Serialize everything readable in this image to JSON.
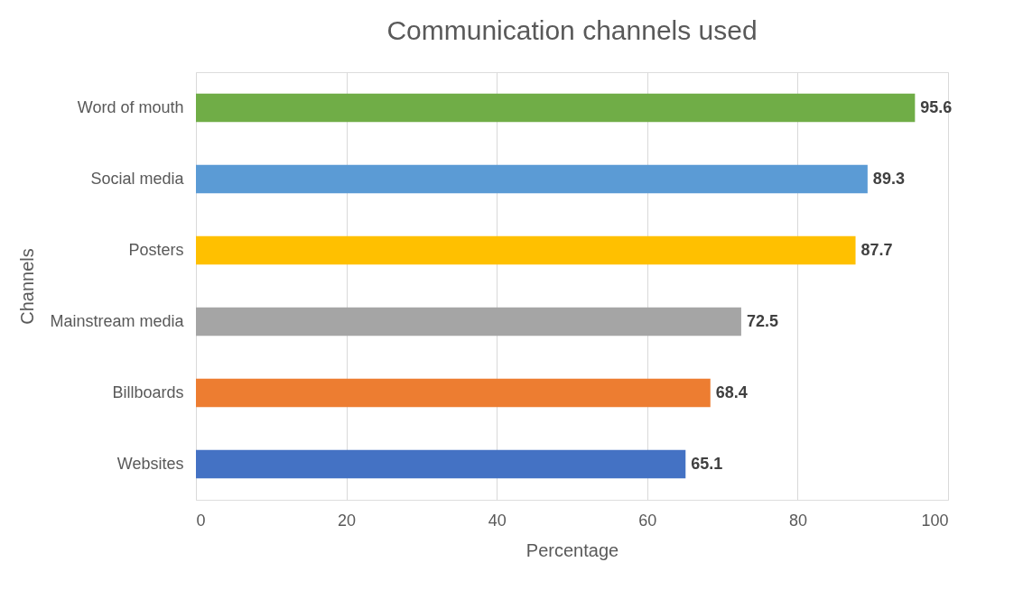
{
  "chart_data": {
    "type": "bar",
    "orientation": "horizontal",
    "title": "Communication channels used",
    "xlabel": "Percentage",
    "ylabel": "Channels",
    "categories": [
      "Word of mouth",
      "Social media",
      "Posters",
      "Mainstream media",
      "Billboards",
      "Websites"
    ],
    "values": [
      95.6,
      89.3,
      87.7,
      72.5,
      68.4,
      65.1
    ],
    "colors": [
      "#70ad47",
      "#5b9bd5",
      "#ffc000",
      "#a5a5a5",
      "#ed7d31",
      "#4472c4"
    ],
    "xlim": [
      0,
      100
    ],
    "xticks": [
      0,
      20,
      40,
      60,
      80,
      100
    ],
    "grid": "x",
    "data_labels": true,
    "legend": false
  }
}
